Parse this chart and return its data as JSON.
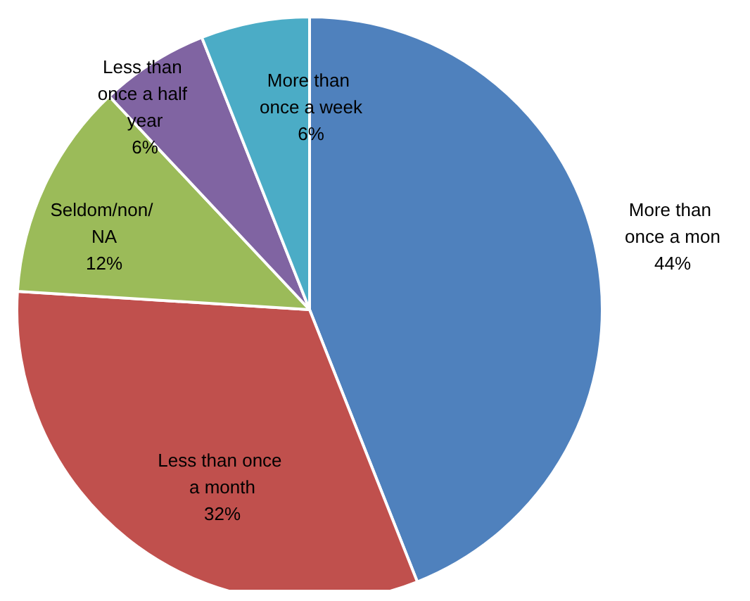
{
  "chart_data": {
    "type": "pie",
    "categories": [
      "More than once a mon",
      "Less than once a month",
      "Seldom/non/ NA",
      "Less than once a half year",
      "More than once a week"
    ],
    "values": [
      44,
      32,
      12,
      6,
      6
    ],
    "value_labels": [
      "44%",
      "32%",
      "12%",
      "6%",
      "6%"
    ],
    "colors": [
      "#4f81bd",
      "#c0504d",
      "#9bbb59",
      "#8064a2",
      "#4bacc6"
    ],
    "legend": false
  }
}
